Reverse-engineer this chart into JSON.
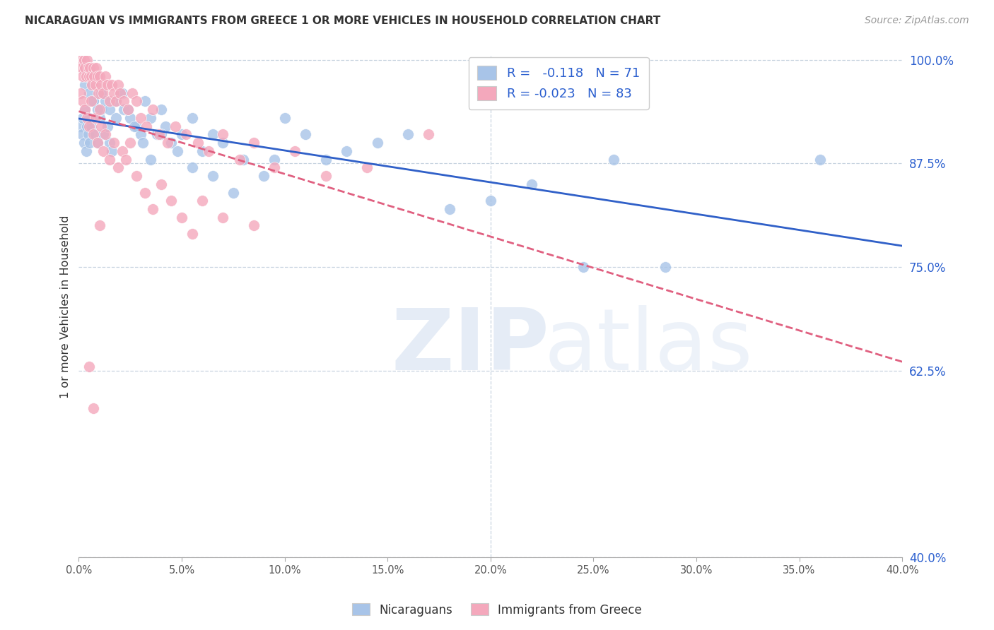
{
  "title": "NICARAGUAN VS IMMIGRANTS FROM GREECE 1 OR MORE VEHICLES IN HOUSEHOLD CORRELATION CHART",
  "source": "Source: ZipAtlas.com",
  "ylabel": "1 or more Vehicles in Household",
  "yticks": [
    40.0,
    62.5,
    75.0,
    87.5,
    100.0
  ],
  "ytick_labels": [
    "40.0%",
    "62.5%",
    "75.0%",
    "87.5%",
    "100.0%"
  ],
  "xmin": 0.0,
  "xmax": 40.0,
  "ymin": 40.0,
  "ymax": 100.0,
  "blue_r": -0.118,
  "pink_r": -0.023,
  "blue_n": 71,
  "pink_n": 83,
  "blue_color": "#a8c4e8",
  "pink_color": "#f4a8bc",
  "blue_line_color": "#3060c8",
  "pink_line_color": "#e06080",
  "blue_points_x": [
    0.1,
    0.15,
    0.2,
    0.25,
    0.3,
    0.35,
    0.4,
    0.45,
    0.5,
    0.55,
    0.6,
    0.7,
    0.8,
    0.9,
    1.0,
    1.1,
    1.2,
    1.4,
    1.5,
    1.6,
    1.8,
    2.0,
    2.2,
    2.5,
    2.8,
    3.0,
    3.2,
    3.5,
    3.8,
    4.0,
    4.2,
    4.5,
    5.0,
    5.5,
    6.0,
    6.5,
    7.0,
    8.0,
    9.0,
    10.0,
    11.0,
    12.0,
    13.0,
    14.5,
    16.0,
    18.0,
    20.0,
    22.0,
    24.5,
    26.0,
    0.3,
    0.5,
    0.7,
    0.9,
    1.1,
    1.3,
    1.5,
    1.8,
    2.1,
    2.4,
    2.7,
    3.1,
    3.5,
    4.0,
    4.8,
    5.5,
    6.5,
    7.5,
    9.5,
    36.0,
    28.5
  ],
  "blue_points_y": [
    92,
    91,
    93,
    90,
    94,
    89,
    92,
    91,
    93,
    90,
    92,
    95,
    91,
    90,
    93,
    94,
    91,
    92,
    90,
    89,
    95,
    96,
    94,
    93,
    92,
    91,
    95,
    93,
    91,
    94,
    92,
    90,
    91,
    93,
    89,
    91,
    90,
    88,
    86,
    93,
    91,
    88,
    89,
    90,
    91,
    82,
    83,
    85,
    75,
    88,
    97,
    96,
    95,
    94,
    96,
    95,
    94,
    93,
    96,
    94,
    92,
    90,
    88,
    91,
    89,
    87,
    86,
    84,
    88,
    88,
    75
  ],
  "pink_points_x": [
    0.05,
    0.1,
    0.15,
    0.2,
    0.25,
    0.3,
    0.35,
    0.4,
    0.45,
    0.5,
    0.55,
    0.6,
    0.65,
    0.7,
    0.75,
    0.8,
    0.85,
    0.9,
    0.95,
    1.0,
    1.1,
    1.2,
    1.3,
    1.4,
    1.5,
    1.6,
    1.7,
    1.8,
    1.9,
    2.0,
    2.2,
    2.4,
    2.6,
    2.8,
    3.0,
    3.3,
    3.6,
    3.9,
    4.3,
    4.7,
    5.2,
    5.8,
    6.3,
    7.0,
    7.8,
    8.5,
    9.5,
    10.5,
    12.0,
    14.0,
    0.1,
    0.2,
    0.3,
    0.4,
    0.5,
    0.6,
    0.7,
    0.8,
    0.9,
    1.0,
    1.1,
    1.2,
    1.3,
    1.5,
    1.7,
    1.9,
    2.1,
    2.3,
    2.5,
    2.8,
    3.2,
    3.6,
    4.0,
    4.5,
    5.0,
    5.5,
    6.0,
    7.0,
    8.5,
    17.0,
    0.5,
    0.7,
    1.0
  ],
  "pink_points_y": [
    99,
    100,
    99,
    98,
    100,
    99,
    98,
    100,
    99,
    98,
    99,
    98,
    97,
    99,
    98,
    97,
    99,
    98,
    96,
    98,
    97,
    96,
    98,
    97,
    95,
    97,
    96,
    95,
    97,
    96,
    95,
    94,
    96,
    95,
    93,
    92,
    94,
    91,
    90,
    92,
    91,
    90,
    89,
    91,
    88,
    90,
    87,
    89,
    86,
    87,
    96,
    95,
    94,
    93,
    92,
    95,
    91,
    93,
    90,
    94,
    92,
    89,
    91,
    88,
    90,
    87,
    89,
    88,
    90,
    86,
    84,
    82,
    85,
    83,
    81,
    79,
    83,
    81,
    80,
    91,
    63,
    58,
    80
  ]
}
